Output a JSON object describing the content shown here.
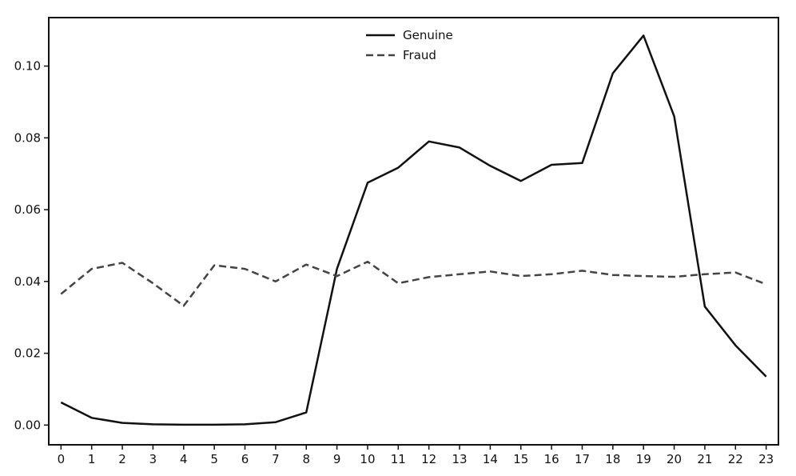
{
  "chart_data": {
    "type": "line",
    "title": "",
    "xlabel": "",
    "ylabel": "",
    "x": [
      0,
      1,
      2,
      3,
      4,
      5,
      6,
      7,
      8,
      9,
      10,
      11,
      12,
      13,
      14,
      15,
      16,
      17,
      18,
      19,
      20,
      21,
      22,
      23
    ],
    "x_tick_labels": [
      "0",
      "1",
      "2",
      "3",
      "4",
      "5",
      "6",
      "7",
      "8",
      "9",
      "10",
      "11",
      "12",
      "13",
      "14",
      "15",
      "16",
      "17",
      "18",
      "19",
      "20",
      "21",
      "22",
      "23"
    ],
    "y_tick_labels": [
      "0.00",
      "0.02",
      "0.04",
      "0.06",
      "0.08",
      "0.10"
    ],
    "y_ticks": [
      0.0,
      0.02,
      0.04,
      0.06,
      0.08,
      0.1
    ],
    "xlim": [
      -0.4,
      23.4
    ],
    "ylim": [
      -0.0055,
      0.1135
    ],
    "grid": false,
    "legend_position": "top-center",
    "series": [
      {
        "name": "Genuine",
        "style": "solid",
        "color": "#111111",
        "values": [
          0.0063,
          0.002,
          0.0006,
          0.0002,
          0.0001,
          0.0001,
          0.0002,
          0.0008,
          0.0035,
          0.0435,
          0.0675,
          0.0717,
          0.079,
          0.0773,
          0.0722,
          0.068,
          0.0725,
          0.073,
          0.098,
          0.1085,
          0.086,
          0.033,
          0.0222,
          0.0135
        ]
      },
      {
        "name": "Fraud",
        "style": "dashed",
        "color": "#444444",
        "values": [
          0.0365,
          0.0435,
          0.0452,
          0.0395,
          0.0332,
          0.0445,
          0.0435,
          0.04,
          0.0447,
          0.0415,
          0.0455,
          0.0395,
          0.0412,
          0.042,
          0.0428,
          0.0415,
          0.042,
          0.043,
          0.0418,
          0.0415,
          0.0413,
          0.042,
          0.0425,
          0.0392
        ]
      }
    ]
  }
}
